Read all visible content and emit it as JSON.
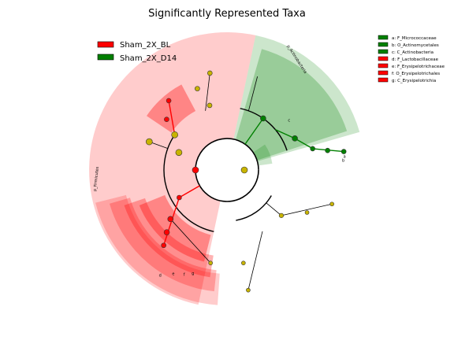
{
  "chart_data": {
    "type": "cladogram",
    "title": "Significantly Represented Taxa",
    "legend_position": "top-left",
    "group_legend": [
      {
        "name": "Sham_2X_BL",
        "color": "#ff0000"
      },
      {
        "name": "Sham_2X_D14",
        "color": "#008000"
      }
    ],
    "taxa_legend": [
      {
        "label": "a: F_Micrococcaceae",
        "color": "#008000"
      },
      {
        "label": "b: O_Actinomycetales",
        "color": "#008000"
      },
      {
        "label": "c: C_Actinobacteria",
        "color": "#008000"
      },
      {
        "label": "d: F_Lactobacillaceae",
        "color": "#ff0000"
      },
      {
        "label": "e: F_Erysipelotrichaceae",
        "color": "#ff0000"
      },
      {
        "label": "f: O_Erysipelotrichales",
        "color": "#ff0000"
      },
      {
        "label": "g: C_Erysipelotrichia",
        "color": "#ff0000"
      }
    ],
    "phylum_labels": [
      {
        "label": "p_Actinobacteria",
        "group": "Sham_2X_D14"
      },
      {
        "label": "p_Firmicutes",
        "group": "Sham_2X_BL"
      }
    ],
    "clade_letters": [
      "a",
      "b",
      "c",
      "d",
      "e",
      "f",
      "g"
    ]
  }
}
